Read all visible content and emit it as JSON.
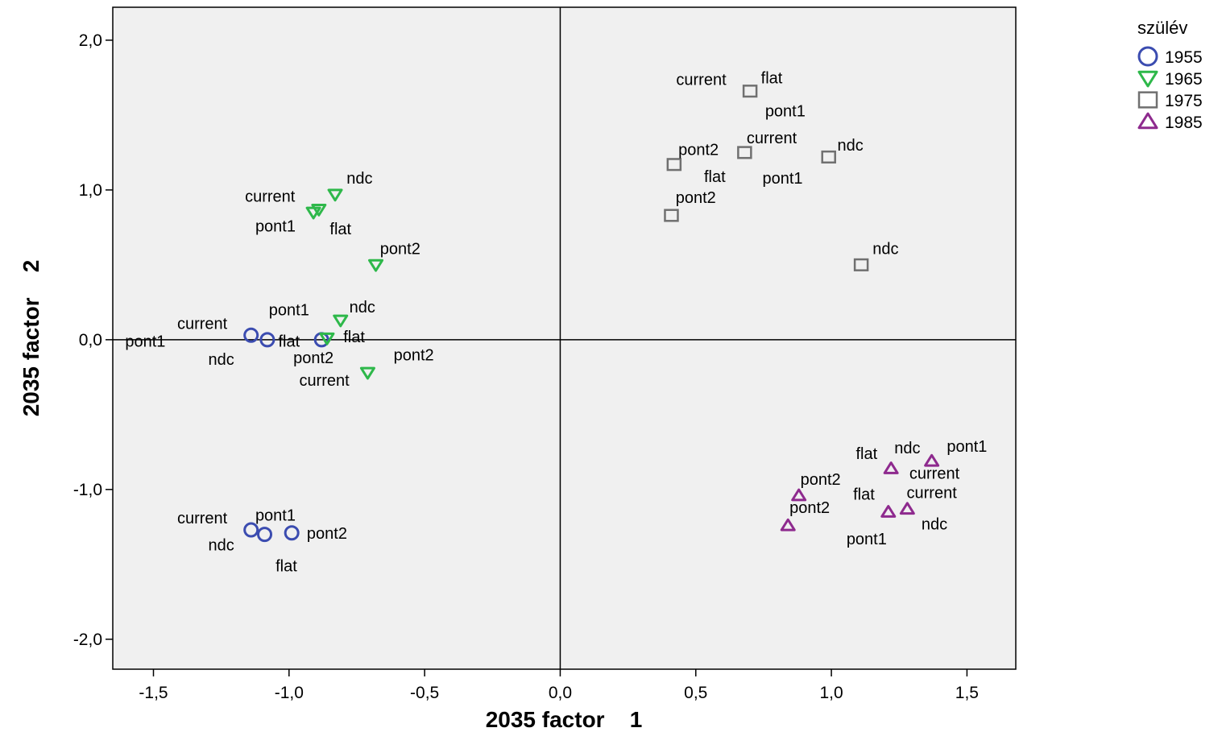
{
  "chart_data": {
    "type": "scatter",
    "xlabel": "2035 factor    1",
    "ylabel": "2035 factor    2",
    "xlim": [
      -1.65,
      1.68
    ],
    "ylim": [
      -2.2,
      2.22
    ],
    "xticks": [
      -1.5,
      -1.0,
      -0.5,
      0.0,
      0.5,
      1.0,
      1.5
    ],
    "yticks": [
      -2.0,
      -1.0,
      0.0,
      1.0,
      2.0
    ],
    "xtick_labels": [
      "-1,5",
      "-1,0",
      "-0,5",
      "0,0",
      "0,5",
      "1,0",
      "1,5"
    ],
    "ytick_labels": [
      "-2,0",
      "-1,0",
      "0,0",
      "1,0",
      "2,0"
    ],
    "grid": false,
    "reference_lines": {
      "x": 0.0,
      "y": 0.0
    },
    "legend": {
      "title": "szülév",
      "position": "top-right",
      "entries": [
        {
          "label": "1955",
          "marker": "circle",
          "color": "#3b4cb0"
        },
        {
          "label": "1965",
          "marker": "triangle-down",
          "color": "#2eb84a"
        },
        {
          "label": "1975",
          "marker": "square",
          "color": "#707070"
        },
        {
          "label": "1985",
          "marker": "triangle-up",
          "color": "#8e2a8e"
        }
      ]
    },
    "series": [
      {
        "name": "1955",
        "points": [
          {
            "x": -1.14,
            "y": 0.03
          },
          {
            "x": -1.08,
            "y": 0.0
          },
          {
            "x": -0.88,
            "y": 0.0
          },
          {
            "x": -1.14,
            "y": -1.27
          },
          {
            "x": -1.09,
            "y": -1.3
          },
          {
            "x": -0.99,
            "y": -1.29
          }
        ],
        "labels": [
          {
            "text": "current",
            "x": -1.32,
            "y": 0.11
          },
          {
            "text": "pont1",
            "x": -1.53,
            "y": -0.01
          },
          {
            "text": "ndc",
            "x": -1.25,
            "y": -0.13
          },
          {
            "text": "flat",
            "x": -1.0,
            "y": -0.01
          },
          {
            "text": "current",
            "x": -1.32,
            "y": -1.19
          },
          {
            "text": "pont1",
            "x": -1.05,
            "y": -1.17
          },
          {
            "text": "ndc",
            "x": -1.25,
            "y": -1.37
          },
          {
            "text": "pont2",
            "x": -0.86,
            "y": -1.29
          },
          {
            "text": "flat",
            "x": -1.01,
            "y": -1.51
          }
        ]
      },
      {
        "name": "1965",
        "points": [
          {
            "x": -0.83,
            "y": 0.97
          },
          {
            "x": -0.89,
            "y": 0.87
          },
          {
            "x": -0.91,
            "y": 0.85
          },
          {
            "x": -0.68,
            "y": 0.5
          },
          {
            "x": -0.81,
            "y": 0.13
          },
          {
            "x": -0.86,
            "y": 0.01
          },
          {
            "x": -0.71,
            "y": -0.22
          }
        ],
        "labels": [
          {
            "text": "ndc",
            "x": -0.74,
            "y": 1.08
          },
          {
            "text": "current",
            "x": -1.07,
            "y": 0.96
          },
          {
            "text": "pont1",
            "x": -1.05,
            "y": 0.76
          },
          {
            "text": "flat",
            "x": -0.81,
            "y": 0.74
          },
          {
            "text": "pont2",
            "x": -0.59,
            "y": 0.61
          },
          {
            "text": "pont1",
            "x": -1.0,
            "y": 0.2
          },
          {
            "text": "ndc",
            "x": -0.73,
            "y": 0.22
          },
          {
            "text": "flat",
            "x": -0.76,
            "y": 0.02
          },
          {
            "text": "pont2",
            "x": -0.91,
            "y": -0.12
          },
          {
            "text": "pont2",
            "x": -0.54,
            "y": -0.1
          },
          {
            "text": "current",
            "x": -0.87,
            "y": -0.27
          }
        ]
      },
      {
        "name": "1975",
        "points": [
          {
            "x": 0.7,
            "y": 1.66
          },
          {
            "x": 0.68,
            "y": 1.25
          },
          {
            "x": 0.42,
            "y": 1.17
          },
          {
            "x": 0.99,
            "y": 1.22
          },
          {
            "x": 0.41,
            "y": 0.83
          },
          {
            "x": 1.11,
            "y": 0.5
          }
        ],
        "labels": [
          {
            "text": "current",
            "x": 0.52,
            "y": 1.74
          },
          {
            "text": "flat",
            "x": 0.78,
            "y": 1.75
          },
          {
            "text": "pont1",
            "x": 0.83,
            "y": 1.53
          },
          {
            "text": "current",
            "x": 0.78,
            "y": 1.35
          },
          {
            "text": "ndc",
            "x": 1.07,
            "y": 1.3
          },
          {
            "text": "pont2",
            "x": 0.51,
            "y": 1.27
          },
          {
            "text": "flat",
            "x": 0.57,
            "y": 1.09
          },
          {
            "text": "pont1",
            "x": 0.82,
            "y": 1.08
          },
          {
            "text": "pont2",
            "x": 0.5,
            "y": 0.95
          },
          {
            "text": "ndc",
            "x": 1.2,
            "y": 0.61
          }
        ]
      },
      {
        "name": "1985",
        "points": [
          {
            "x": 1.37,
            "y": -0.81
          },
          {
            "x": 1.22,
            "y": -0.86
          },
          {
            "x": 0.88,
            "y": -1.04
          },
          {
            "x": 1.21,
            "y": -1.15
          },
          {
            "x": 1.28,
            "y": -1.13
          },
          {
            "x": 0.84,
            "y": -1.24
          }
        ],
        "labels": [
          {
            "text": "flat",
            "x": 1.13,
            "y": -0.76
          },
          {
            "text": "ndc",
            "x": 1.28,
            "y": -0.72
          },
          {
            "text": "pont1",
            "x": 1.5,
            "y": -0.71
          },
          {
            "text": "current",
            "x": 1.38,
            "y": -0.89
          },
          {
            "text": "pont2",
            "x": 0.96,
            "y": -0.93
          },
          {
            "text": "flat",
            "x": 1.12,
            "y": -1.03
          },
          {
            "text": "current",
            "x": 1.37,
            "y": -1.02
          },
          {
            "text": "pont2",
            "x": 0.92,
            "y": -1.12
          },
          {
            "text": "ndc",
            "x": 1.38,
            "y": -1.23
          },
          {
            "text": "pont1",
            "x": 1.13,
            "y": -1.33
          }
        ]
      }
    ]
  }
}
